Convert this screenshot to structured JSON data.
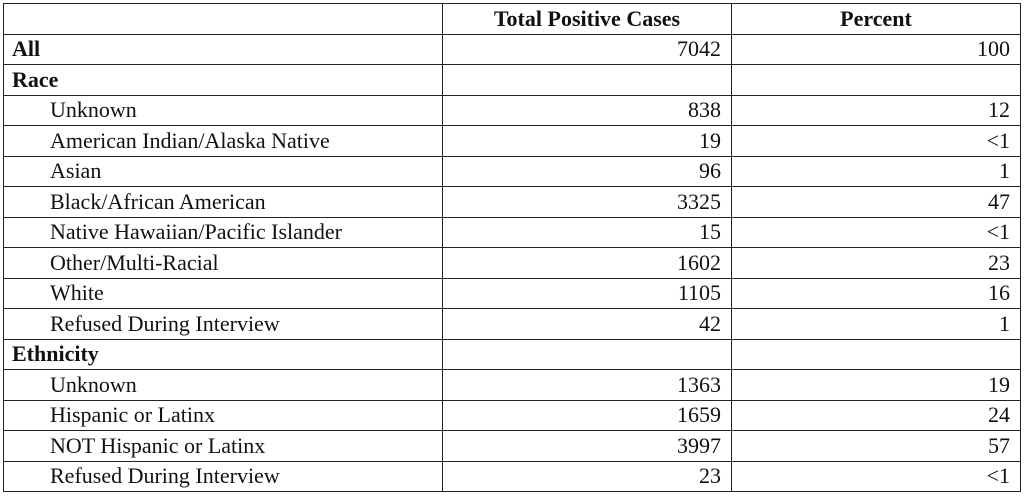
{
  "table": {
    "columns": [
      "Total Positive Cases",
      "Percent"
    ],
    "all": {
      "label": "All",
      "cases": 7042,
      "percent": 100
    },
    "sections": [
      {
        "title": "Race",
        "rows": [
          {
            "label": "Unknown",
            "cases": 838,
            "percent": 12
          },
          {
            "label": "American Indian/Alaska Native",
            "cases": 19,
            "percent": "<1"
          },
          {
            "label": "Asian",
            "cases": 96,
            "percent": 1
          },
          {
            "label": "Black/African American",
            "cases": 3325,
            "percent": 47
          },
          {
            "label": "Native Hawaiian/Pacific Islander",
            "cases": 15,
            "percent": "<1"
          },
          {
            "label": "Other/Multi-Racial",
            "cases": 1602,
            "percent": 23
          },
          {
            "label": "White",
            "cases": 1105,
            "percent": 16
          },
          {
            "label": "Refused During Interview",
            "cases": 42,
            "percent": 1
          }
        ]
      },
      {
        "title": "Ethnicity",
        "rows": [
          {
            "label": "Unknown",
            "cases": 1363,
            "percent": 19
          },
          {
            "label": "Hispanic or Latinx",
            "cases": 1659,
            "percent": 24
          },
          {
            "label": "NOT Hispanic or Latinx",
            "cases": 3997,
            "percent": 57
          },
          {
            "label": "Refused During Interview",
            "cases": 23,
            "percent": "<1"
          }
        ]
      }
    ]
  }
}
